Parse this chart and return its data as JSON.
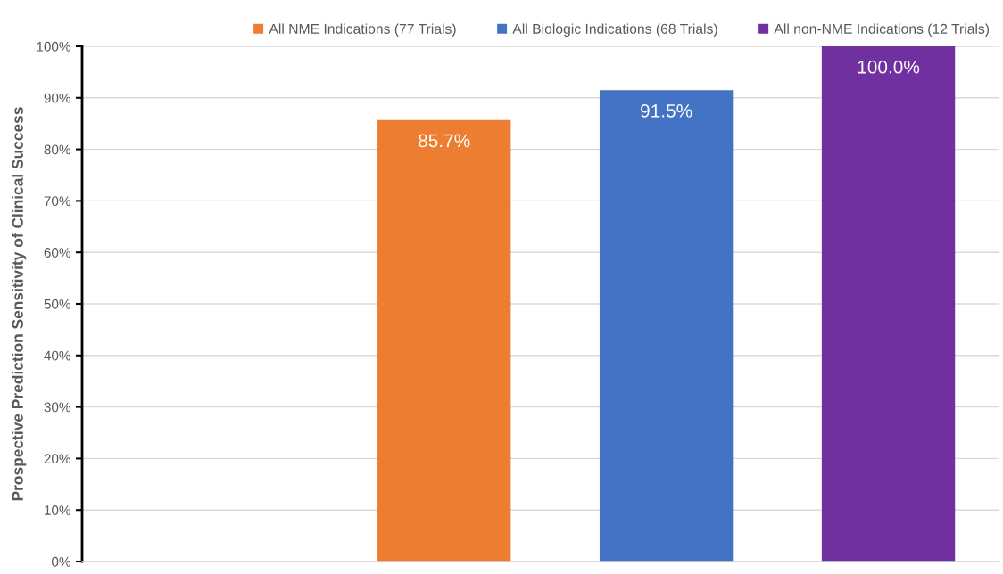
{
  "chart_data": {
    "type": "bar",
    "ylabel": "Prospective Prediction Sensitivity of Clinical Success",
    "categories": [
      null,
      null,
      null,
      null
    ],
    "series": [
      {
        "name": "All NME Indications (77 Trials)",
        "color": "#ed7d31",
        "values": [
          null,
          85.7,
          null,
          null
        ],
        "value_labels": [
          null,
          "85.7%",
          null,
          null
        ]
      },
      {
        "name": "All Biologic Indications (68 Trials)",
        "color": "#4472c4",
        "values": [
          null,
          null,
          91.5,
          null
        ],
        "value_labels": [
          null,
          null,
          "91.5%",
          null
        ]
      },
      {
        "name": "All non-NME Indications (12 Trials)",
        "color": "#7030a0",
        "values": [
          null,
          null,
          null,
          100.0
        ],
        "value_labels": [
          null,
          null,
          null,
          "100.0%"
        ]
      }
    ],
    "ylim": [
      0,
      100
    ],
    "yticks": [
      {
        "value": 0,
        "label": "0%"
      },
      {
        "value": 10,
        "label": "10%"
      },
      {
        "value": 20,
        "label": "20%"
      },
      {
        "value": 30,
        "label": "30%"
      },
      {
        "value": 40,
        "label": "40%"
      },
      {
        "value": 50,
        "label": "50%"
      },
      {
        "value": 60,
        "label": "60%"
      },
      {
        "value": 70,
        "label": "70%"
      },
      {
        "value": 80,
        "label": "80%"
      },
      {
        "value": 90,
        "label": "90%"
      },
      {
        "value": 100,
        "label": "100%"
      }
    ],
    "grid": "y",
    "legend": "top right",
    "tick_labels": "y"
  }
}
